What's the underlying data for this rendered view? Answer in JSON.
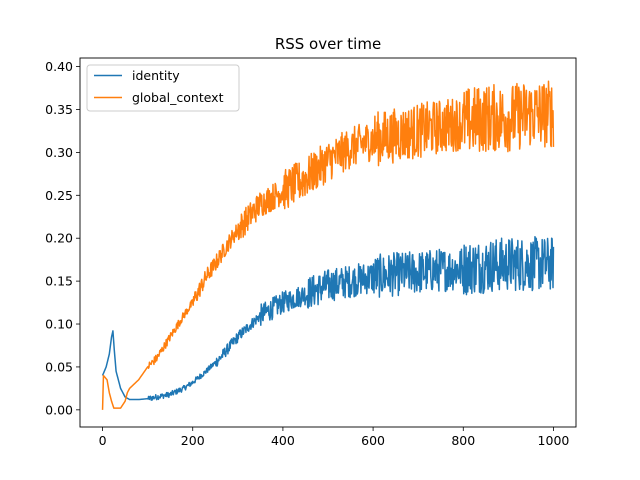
{
  "chart_data": {
    "type": "line",
    "title": "RSS over time",
    "xlabel": "",
    "ylabel": "",
    "xlim": [
      -50,
      1050
    ],
    "ylim": [
      -0.02,
      0.41
    ],
    "xticks": [
      0,
      200,
      400,
      600,
      800,
      1000
    ],
    "yticks": [
      0.0,
      0.05,
      0.1,
      0.15,
      0.2,
      0.25,
      0.3,
      0.35,
      0.4
    ],
    "grid": false,
    "legend": "upper-left",
    "series": [
      {
        "name": "identity",
        "color": "#1f77b4",
        "noise": [
          0.0,
          0.002,
          0.004,
          0.008,
          0.012,
          0.016,
          0.02
        ],
        "noise_breaks": [
          100,
          250,
          350,
          450,
          600,
          800,
          1000
        ],
        "points": [
          [
            0,
            0.04
          ],
          [
            8,
            0.05
          ],
          [
            15,
            0.065
          ],
          [
            20,
            0.085
          ],
          [
            23,
            0.092
          ],
          [
            26,
            0.07
          ],
          [
            30,
            0.045
          ],
          [
            35,
            0.035
          ],
          [
            40,
            0.025
          ],
          [
            45,
            0.02
          ],
          [
            50,
            0.015
          ],
          [
            60,
            0.012
          ],
          [
            80,
            0.012
          ],
          [
            100,
            0.013
          ],
          [
            120,
            0.015
          ],
          [
            150,
            0.018
          ],
          [
            180,
            0.025
          ],
          [
            200,
            0.032
          ],
          [
            230,
            0.045
          ],
          [
            260,
            0.06
          ],
          [
            300,
            0.085
          ],
          [
            350,
            0.11
          ],
          [
            400,
            0.125
          ],
          [
            450,
            0.135
          ],
          [
            500,
            0.145
          ],
          [
            550,
            0.15
          ],
          [
            600,
            0.155
          ],
          [
            650,
            0.158
          ],
          [
            700,
            0.16
          ],
          [
            750,
            0.163
          ],
          [
            800,
            0.165
          ],
          [
            850,
            0.168
          ],
          [
            900,
            0.17
          ],
          [
            950,
            0.17
          ],
          [
            1000,
            0.17
          ]
        ]
      },
      {
        "name": "global_context",
        "color": "#ff7f0e",
        "noise": [
          0.0,
          0.003,
          0.006,
          0.01,
          0.015,
          0.02,
          0.025
        ],
        "noise_breaks": [
          100,
          200,
          300,
          400,
          600,
          800,
          1000
        ],
        "points": [
          [
            0,
            0.0
          ],
          [
            2,
            0.04
          ],
          [
            10,
            0.035
          ],
          [
            15,
            0.02
          ],
          [
            20,
            0.01
          ],
          [
            25,
            0.002
          ],
          [
            40,
            0.002
          ],
          [
            50,
            0.01
          ],
          [
            55,
            0.02
          ],
          [
            60,
            0.025
          ],
          [
            80,
            0.035
          ],
          [
            100,
            0.05
          ],
          [
            120,
            0.06
          ],
          [
            150,
            0.085
          ],
          [
            180,
            0.11
          ],
          [
            200,
            0.125
          ],
          [
            230,
            0.155
          ],
          [
            250,
            0.17
          ],
          [
            280,
            0.195
          ],
          [
            300,
            0.21
          ],
          [
            350,
            0.24
          ],
          [
            400,
            0.255
          ],
          [
            450,
            0.27
          ],
          [
            500,
            0.29
          ],
          [
            550,
            0.305
          ],
          [
            600,
            0.315
          ],
          [
            650,
            0.32
          ],
          [
            700,
            0.325
          ],
          [
            750,
            0.33
          ],
          [
            800,
            0.335
          ],
          [
            850,
            0.34
          ],
          [
            900,
            0.34
          ],
          [
            950,
            0.345
          ],
          [
            1000,
            0.345
          ]
        ]
      }
    ]
  }
}
